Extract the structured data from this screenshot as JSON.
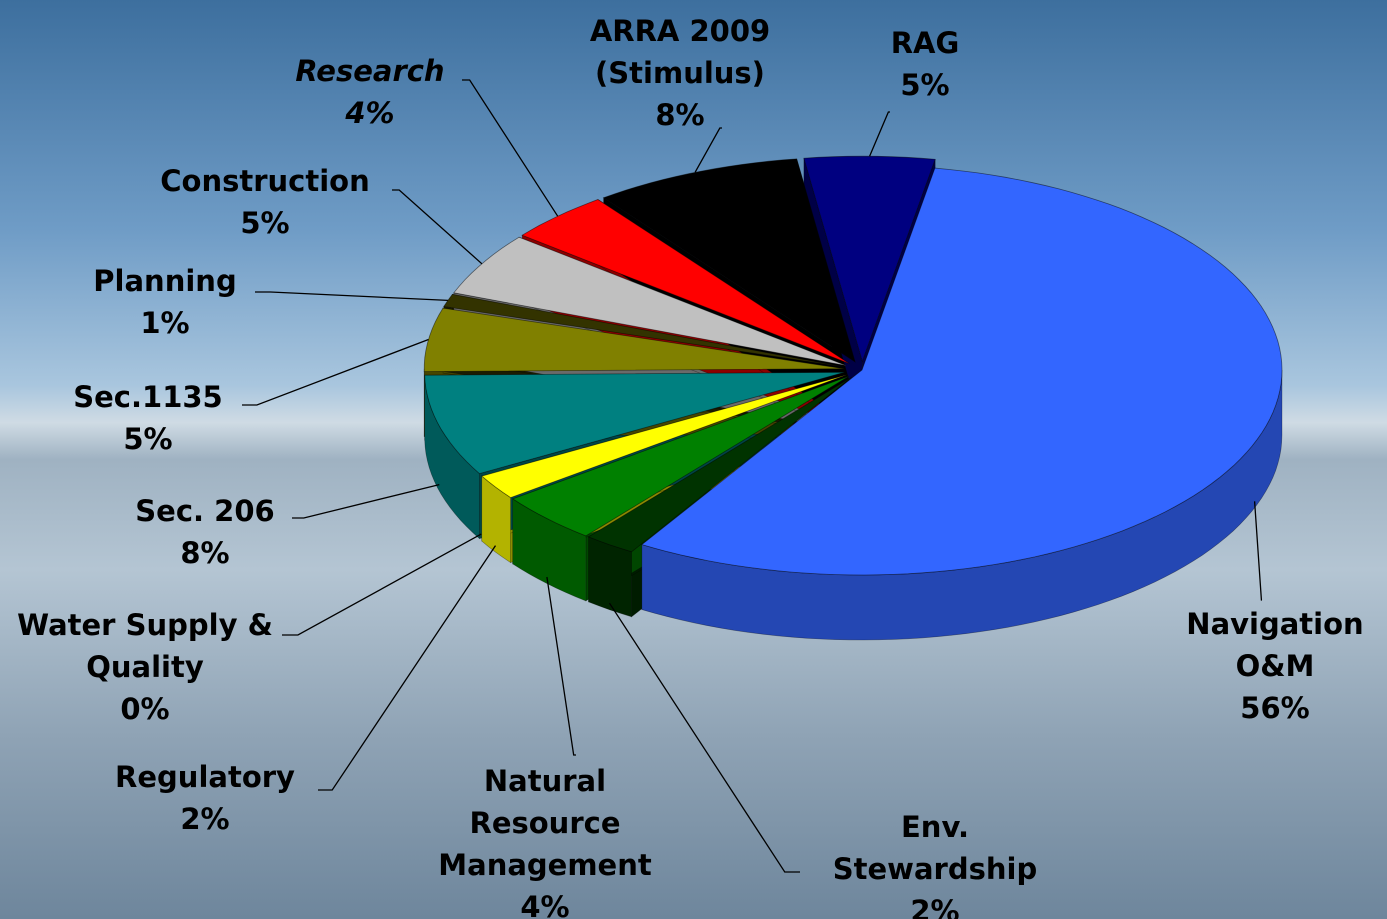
{
  "chart_data": {
    "type": "pie",
    "categories": [
      "Navigation O&M",
      "Env. Stewardship",
      "Natural Resource Management",
      "Regulatory",
      "Water Supply & Quality",
      "Sec. 206",
      "Sec.1135",
      "Planning",
      "Construction",
      "Research",
      "ARRA 2009 (Stimulus)",
      "RAG"
    ],
    "values": [
      56,
      2,
      4,
      2,
      0,
      8,
      5,
      1,
      5,
      4,
      8,
      5
    ],
    "value_labels": [
      "56%",
      "2%",
      "4%",
      "2%",
      "0%",
      "8%",
      "5%",
      "1%",
      "5%",
      "4%",
      "8%",
      "5%"
    ],
    "colors": [
      "#3366ff",
      "#003300",
      "#008000",
      "#ffff00",
      "#ff9900",
      "#008080",
      "#808000",
      "#333300",
      "#c0c0c0",
      "#ff0000",
      "#000000",
      "#000080"
    ]
  }
}
